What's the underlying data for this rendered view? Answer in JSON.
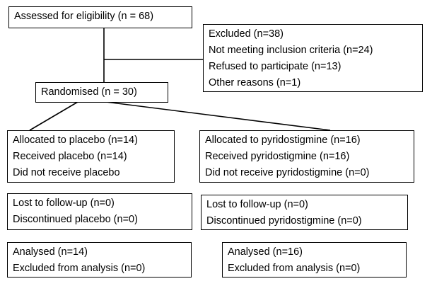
{
  "flowchart": {
    "assessed": "Assessed for eligibility (n = 68)",
    "excluded": [
      "Excluded (n=38)",
      "Not meeting inclusion criteria (n=24)",
      "Refused to participate (n=13)",
      "Other reasons (n=1)"
    ],
    "randomised": "Randomised (n = 30)",
    "placebo_arm": {
      "allocation": [
        "Allocated to placebo (n=14)",
        "Received placebo (n=14)",
        "Did not receive placebo"
      ],
      "follow_up": [
        "Lost to follow-up (n=0)",
        "Discontinued placebo (n=0)"
      ],
      "analysis": [
        "Analysed (n=14)",
        "Excluded from analysis (n=0)"
      ]
    },
    "pyridostigmine_arm": {
      "allocation": [
        "Allocated to pyridostigmine (n=16)",
        "Received pyridostigmine (n=16)",
        "Did not receive pyridostigmine (n=0)"
      ],
      "follow_up": [
        "Lost to follow-up (n=0)",
        "Discontinued pyridostigmine (n=0)"
      ],
      "analysis": [
        "Analysed (n=16)",
        "Excluded from analysis (n=0)"
      ]
    }
  }
}
